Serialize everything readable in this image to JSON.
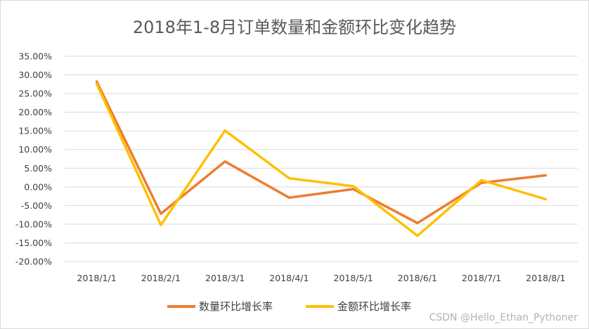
{
  "chart_data": {
    "type": "line",
    "title": "2018年1-8月订单数量和金额环比变化趋势",
    "categories": [
      "2018/1/1",
      "2018/2/1",
      "2018/3/1",
      "2018/4/1",
      "2018/5/1",
      "2018/6/1",
      "2018/7/1",
      "2018/8/1"
    ],
    "y_ticks": [
      "35.00%",
      "30.00%",
      "25.00%",
      "20.00%",
      "15.00%",
      "10.00%",
      "5.00%",
      "0.00%",
      "-5.00%",
      "-10.00%",
      "-15.00%",
      "-20.00%"
    ],
    "ylim": [
      -20,
      35
    ],
    "y_unit": "percent",
    "grid": true,
    "legend_position": "bottom",
    "series": [
      {
        "name": "数量环比增长率",
        "color": "#ED7D31",
        "values": [
          28.2,
          -7.2,
          6.8,
          -2.9,
          -0.6,
          -9.7,
          1.1,
          3.1
        ]
      },
      {
        "name": "金额环比增长率",
        "color": "#FFC000",
        "values": [
          27.6,
          -10.2,
          15.1,
          2.3,
          0.2,
          -13.1,
          1.8,
          -3.3
        ]
      }
    ]
  },
  "watermark": "CSDN @Hello_Ethan_Pythoner"
}
